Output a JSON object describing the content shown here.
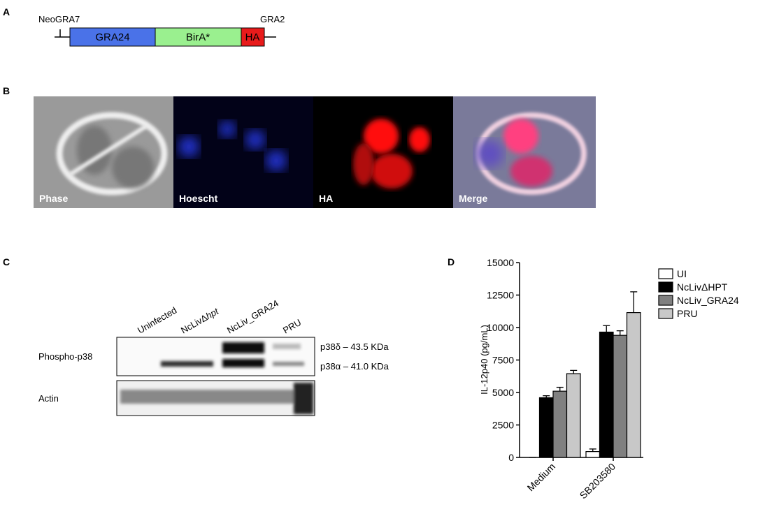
{
  "panel_a": {
    "label": "A",
    "left_label": "NeoGRA7",
    "right_label": "GRA2",
    "segments": [
      "GRA24",
      "BirA*",
      "HA"
    ]
  },
  "panel_b": {
    "label": "B",
    "images": [
      "Phase",
      "Hoescht",
      "HA",
      "Merge"
    ]
  },
  "panel_c": {
    "label": "C",
    "lanes": [
      [
        "Uninfected"
      ],
      [
        "NcLivΔ",
        "hpt"
      ],
      [
        "NcLiv_GRA24"
      ],
      [
        "PRU"
      ]
    ],
    "rows": [
      "Phospho-p38",
      "Actin"
    ],
    "bands": [
      "p38δ – 43.5 KDa",
      "p38α – 41.0 KDa"
    ]
  },
  "panel_d": {
    "label": "D"
  },
  "chart_data": {
    "type": "bar",
    "y_label": "IL-12p40 (pg/mL)",
    "categories": [
      "Medium",
      "SB203580"
    ],
    "series": [
      {
        "name": "UI",
        "color": "#ffffff",
        "values": [
          0,
          450
        ],
        "errors": [
          0,
          200
        ]
      },
      {
        "name": "NcLivΔHPT",
        "color": "#000000",
        "values": [
          4600,
          9650
        ],
        "errors": [
          150,
          500
        ]
      },
      {
        "name": "NcLiv_GRA24",
        "color": "#808080",
        "values": [
          5100,
          9400
        ],
        "errors": [
          300,
          350
        ]
      },
      {
        "name": "PRU",
        "color": "#c8c8c8",
        "values": [
          6450,
          11150
        ],
        "errors": [
          250,
          1600
        ]
      }
    ],
    "ylim": [
      0,
      15000
    ],
    "yticks": [
      0,
      2500,
      5000,
      7500,
      10000,
      12500,
      15000
    ]
  }
}
